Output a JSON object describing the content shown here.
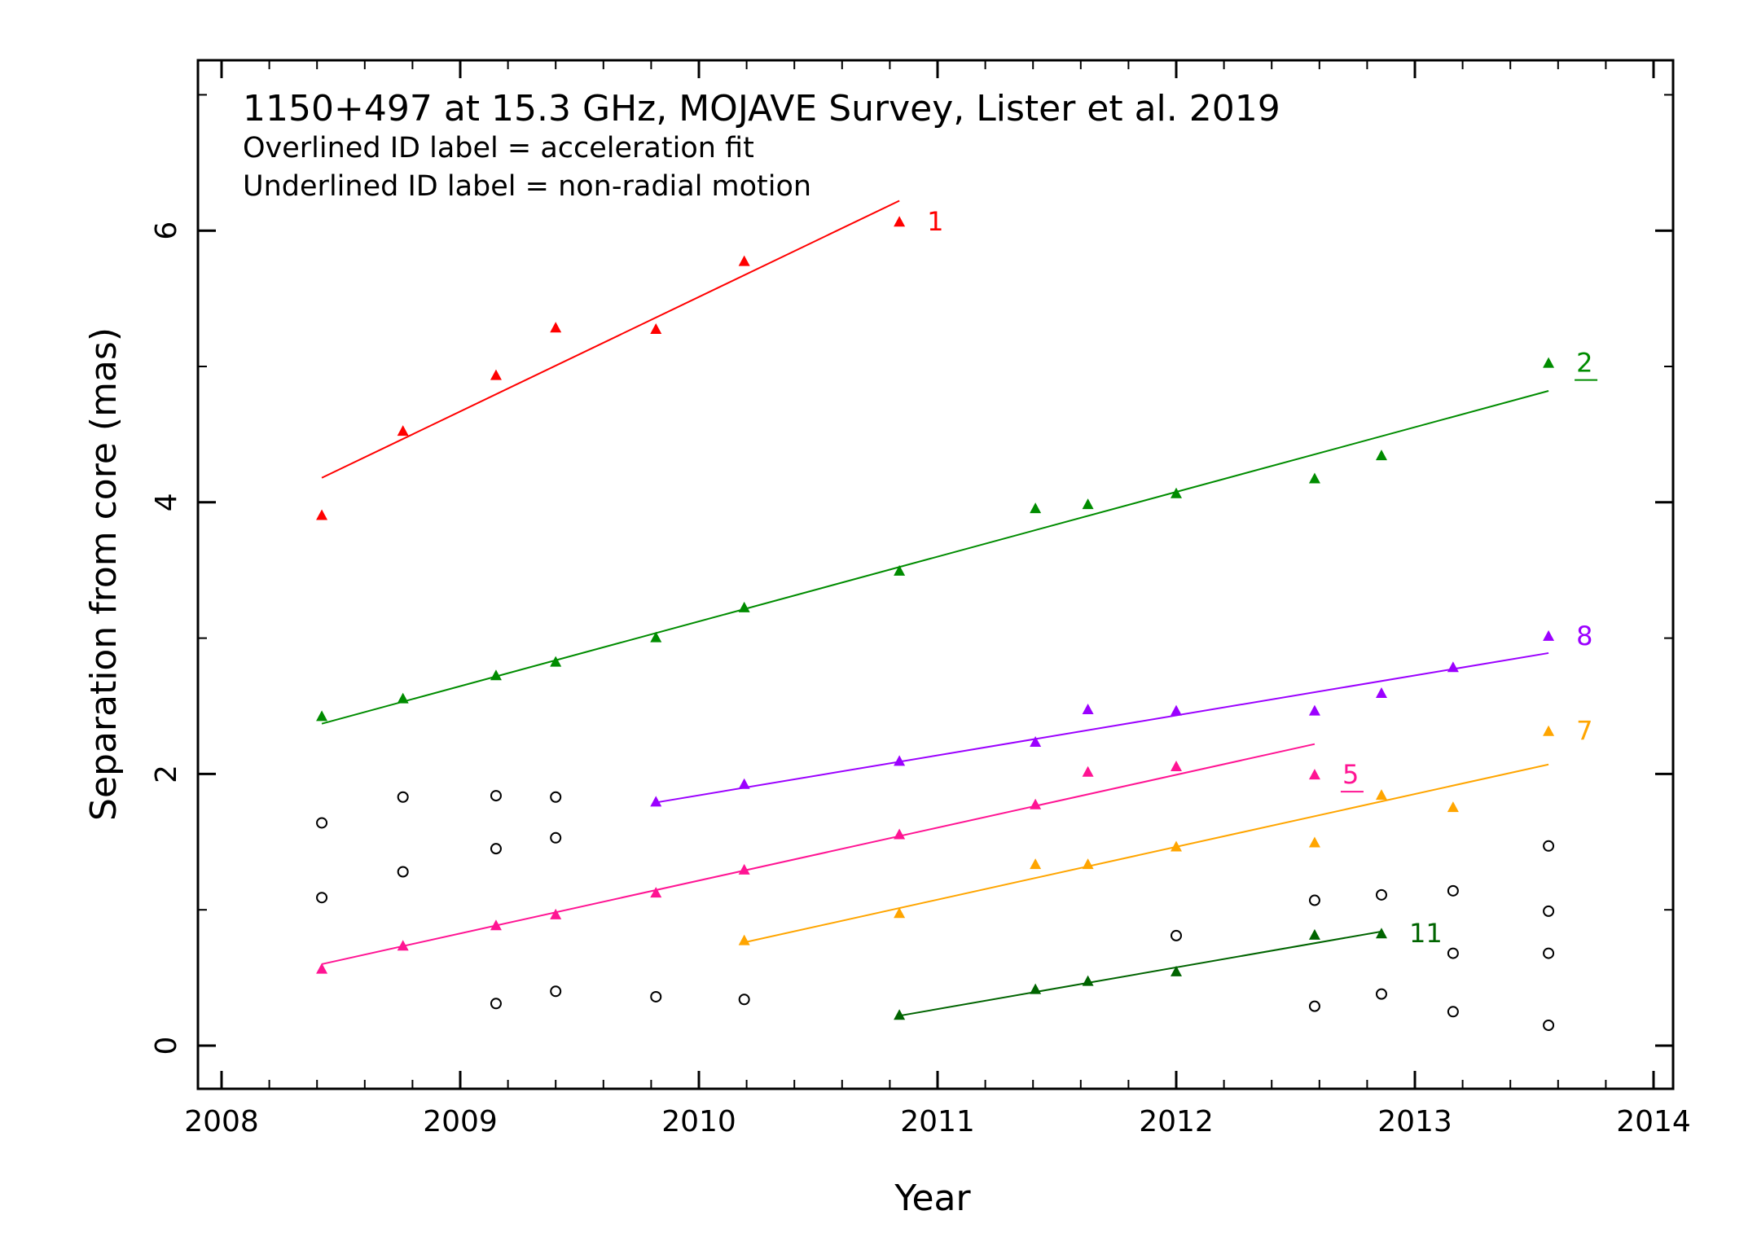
{
  "chart_data": {
    "type": "scatter",
    "title": "1150+497 at 15.3 GHz, MOJAVE Survey, Lister et al. 2019",
    "notes": [
      "Overlined ID label = acceleration fit",
      "Underlined ID label = non-radial motion"
    ],
    "xlabel": "Year",
    "ylabel": "Separation from core (mas)",
    "xlim": [
      2007.9,
      2014.0
    ],
    "ylim": [
      -0.3,
      7.3
    ],
    "xticks": [
      2008,
      2009,
      2010,
      2011,
      2012,
      2013,
      2014
    ],
    "yticks": [
      0,
      2,
      4,
      6
    ],
    "grid": false,
    "series": [
      {
        "name": "1",
        "color": "#ff0000",
        "label_style": "plain",
        "x": [
          2008.42,
          2008.76,
          2009.15,
          2009.4,
          2009.82,
          2010.19,
          2010.84
        ],
        "y": [
          3.9,
          4.52,
          4.93,
          5.28,
          5.27,
          5.77,
          6.06
        ],
        "fit": [
          [
            2008.42,
            4.18
          ],
          [
            2010.84,
            6.22
          ]
        ]
      },
      {
        "name": "2",
        "color": "#008c00",
        "label_style": "underline",
        "x": [
          2008.42,
          2008.76,
          2009.15,
          2009.4,
          2009.82,
          2010.19,
          2010.84,
          2011.41,
          2011.63,
          2012.0,
          2012.58,
          2012.86,
          2013.56
        ],
        "y": [
          2.42,
          2.55,
          2.72,
          2.82,
          3.0,
          3.22,
          3.49,
          3.95,
          3.98,
          4.06,
          4.17,
          4.34,
          5.02
        ],
        "fit": [
          [
            2008.42,
            2.37
          ],
          [
            2013.56,
            4.82
          ]
        ]
      },
      {
        "name": "8",
        "color": "#9b00ff",
        "label_style": "plain",
        "x": [
          2009.82,
          2010.19,
          2010.84,
          2011.41,
          2011.63,
          2012.0,
          2012.58,
          2012.86,
          2013.16,
          2013.56
        ],
        "y": [
          1.79,
          1.92,
          2.09,
          2.23,
          2.47,
          2.46,
          2.46,
          2.59,
          2.78,
          3.01
        ],
        "fit": [
          [
            2009.82,
            1.79
          ],
          [
            2013.56,
            2.89
          ]
        ]
      },
      {
        "name": "5",
        "color": "#ff1493",
        "label_style": "underline",
        "x": [
          2008.42,
          2008.76,
          2009.15,
          2009.4,
          2009.82,
          2010.19,
          2010.84,
          2011.41,
          2011.63,
          2012.0,
          2012.58
        ],
        "y": [
          0.56,
          0.73,
          0.88,
          0.96,
          1.12,
          1.29,
          1.55,
          1.77,
          2.01,
          2.05,
          1.99
        ],
        "fit": [
          [
            2008.42,
            0.6
          ],
          [
            2012.58,
            2.22
          ]
        ]
      },
      {
        "name": "7",
        "color": "#ffa500",
        "label_style": "plain",
        "x": [
          2010.19,
          2010.84,
          2011.41,
          2011.63,
          2012.0,
          2012.58,
          2012.86,
          2013.16,
          2013.56
        ],
        "y": [
          0.77,
          0.97,
          1.33,
          1.33,
          1.46,
          1.49,
          1.84,
          1.75,
          2.31
        ],
        "fit": [
          [
            2010.19,
            0.76
          ],
          [
            2013.56,
            2.07
          ]
        ]
      },
      {
        "name": "11",
        "color": "#006400",
        "label_style": "plain",
        "x": [
          2010.84,
          2011.41,
          2011.63,
          2012.0,
          2012.58,
          2012.86
        ],
        "y": [
          0.22,
          0.41,
          0.47,
          0.54,
          0.81,
          0.82
        ],
        "fit": [
          [
            2010.84,
            0.22
          ],
          [
            2012.86,
            0.84
          ]
        ]
      }
    ],
    "unidentified": {
      "color": "#000000",
      "x": [
        2008.42,
        2008.42,
        2008.76,
        2008.76,
        2009.15,
        2009.15,
        2009.15,
        2009.4,
        2009.4,
        2009.4,
        2009.82,
        2010.19,
        2012.0,
        2012.58,
        2012.58,
        2012.86,
        2012.86,
        2013.16,
        2013.16,
        2013.16,
        2013.56,
        2013.56,
        2013.56,
        2013.56
      ],
      "y": [
        1.64,
        1.09,
        1.83,
        1.28,
        1.84,
        1.45,
        0.31,
        1.83,
        1.53,
        0.4,
        0.36,
        0.34,
        0.81,
        1.07,
        0.29,
        1.11,
        0.38,
        1.14,
        0.68,
        0.25,
        1.47,
        0.99,
        0.68,
        0.15
      ]
    }
  }
}
